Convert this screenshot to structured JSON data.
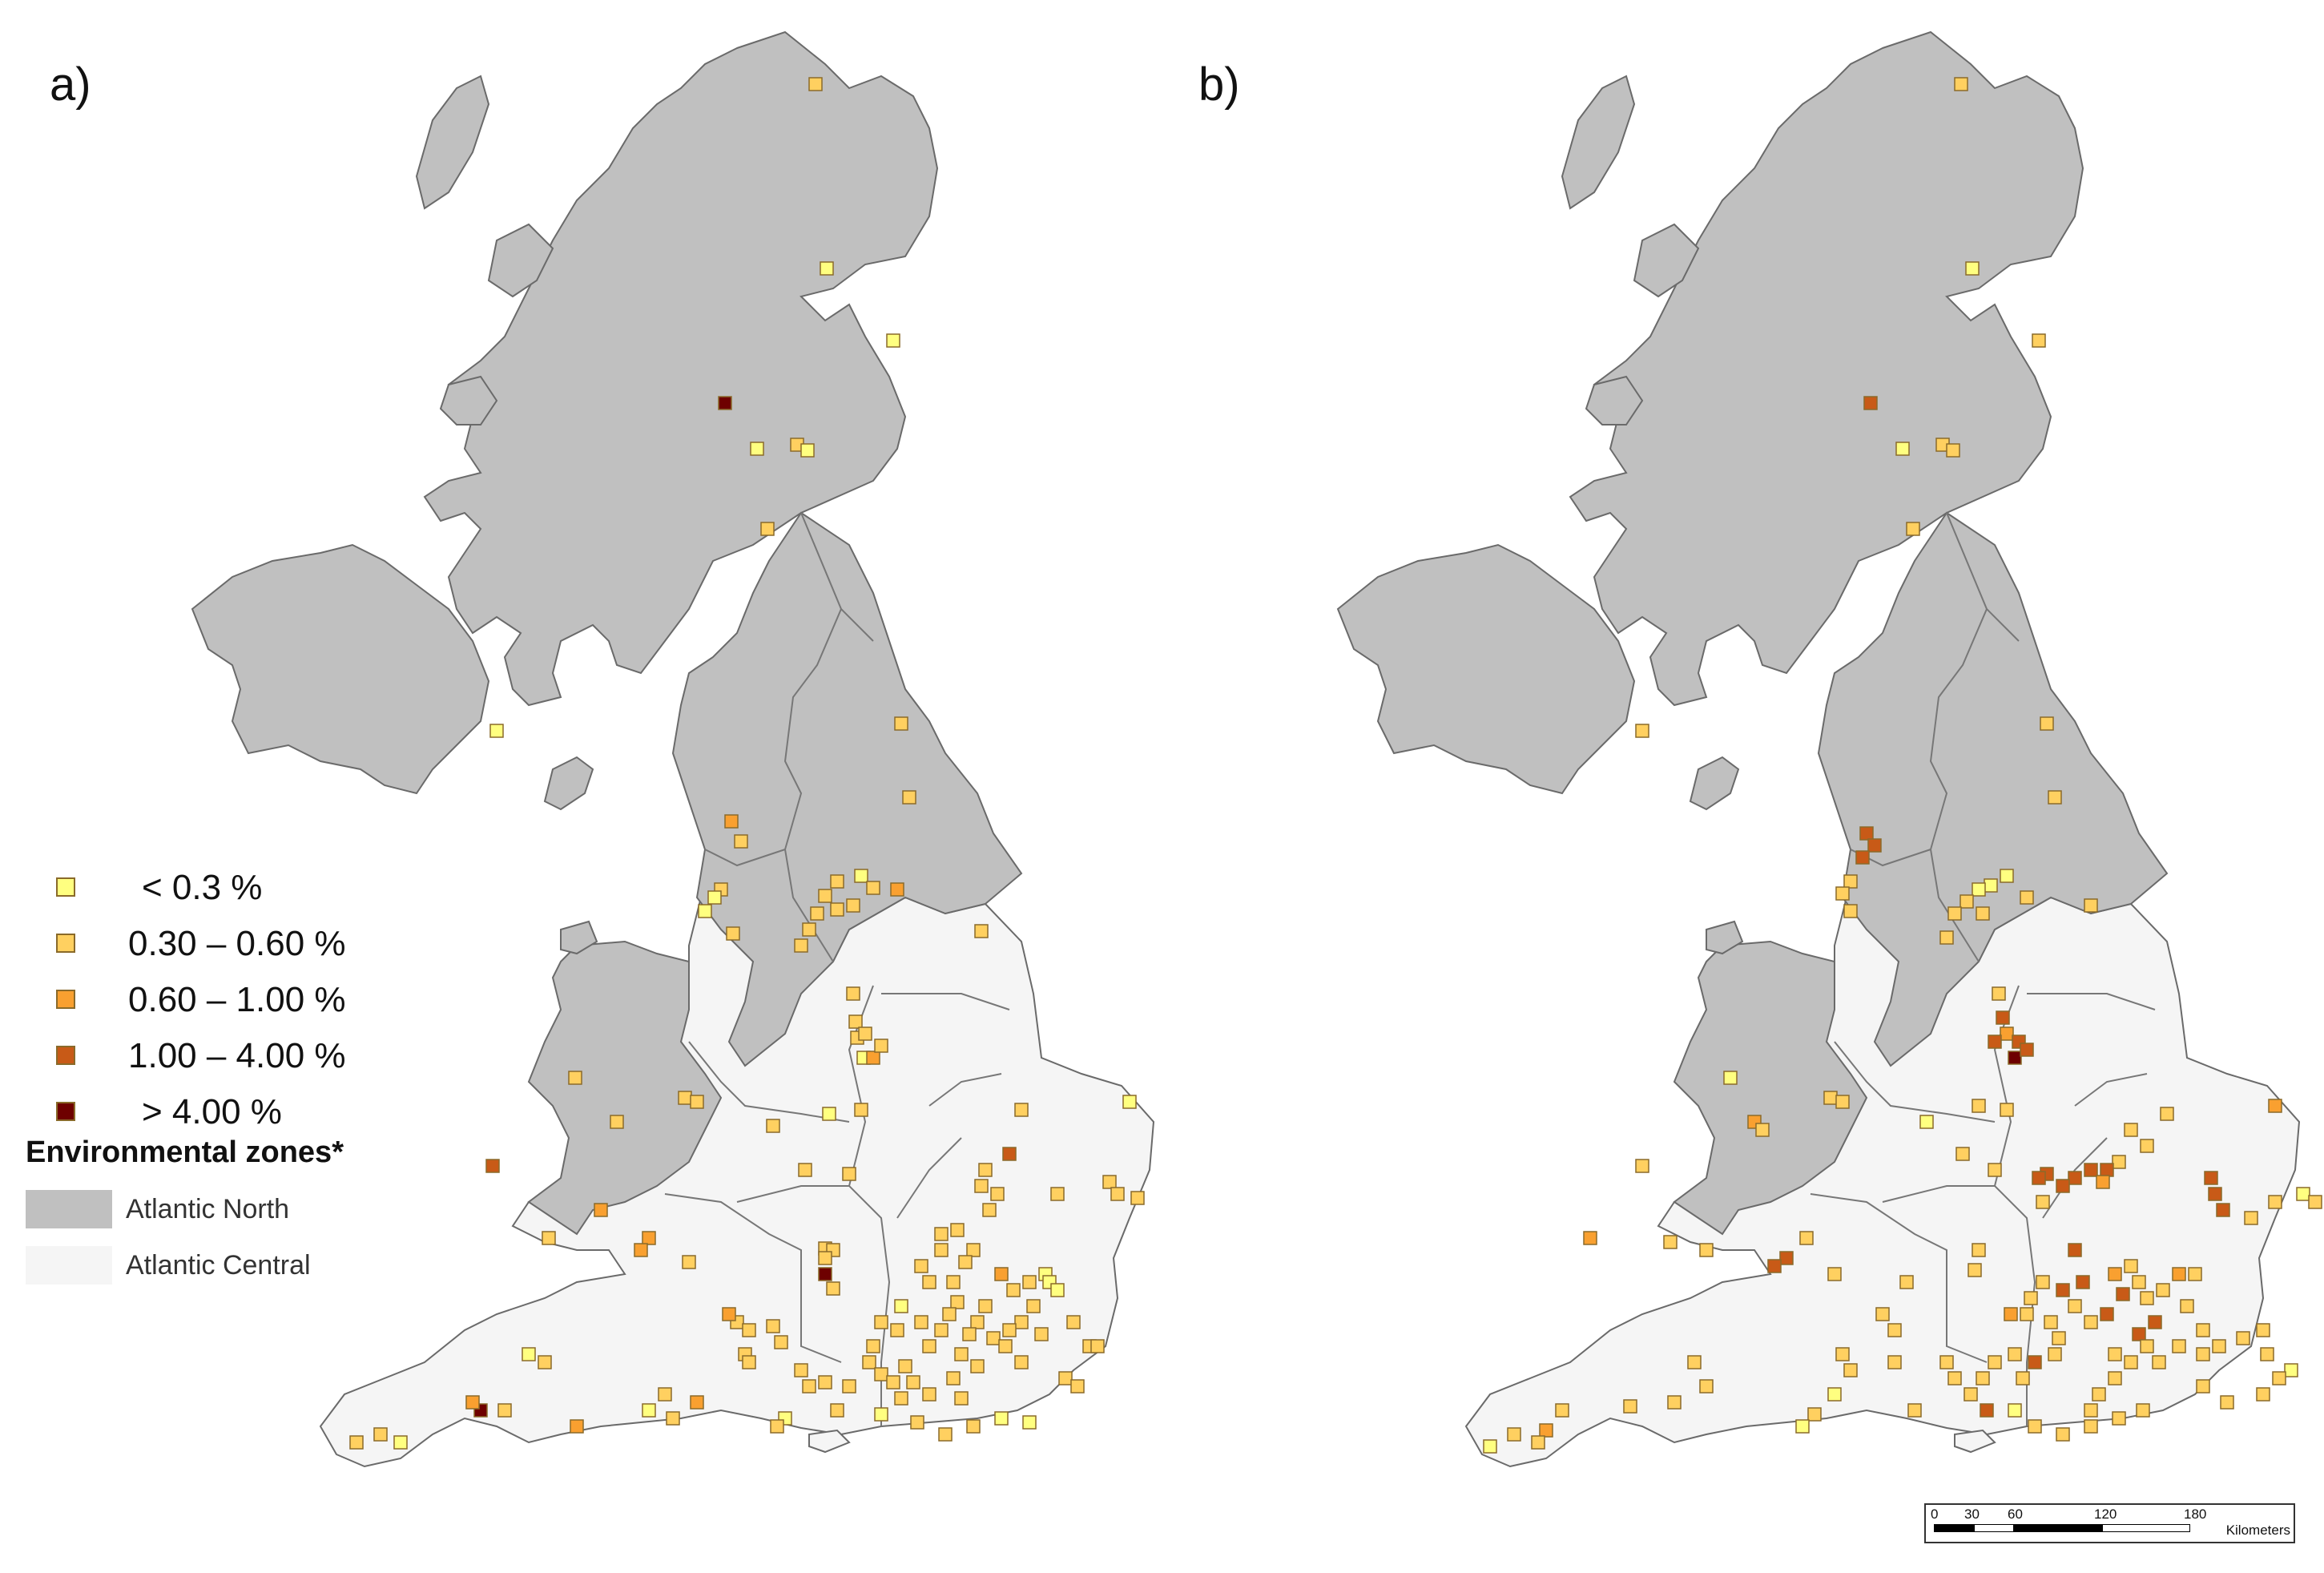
{
  "panels": [
    {
      "label": "a)"
    },
    {
      "label": "b)"
    }
  ],
  "legend": {
    "classes": [
      {
        "label": "< 0.3 %",
        "color": "#ffff80"
      },
      {
        "label": "0.30 – 0.60 %",
        "color": "#ffd060"
      },
      {
        "label": "0.60 – 1.00 %",
        "color": "#f9a030"
      },
      {
        "label": "1.00 – 4.00 %",
        "color": "#c85a17"
      },
      {
        "label": "> 4.00 %",
        "color": "#6e0000"
      }
    ],
    "zones_title": "Environmental zones*",
    "zones": [
      {
        "label": "Atlantic North",
        "color": "#c0c0c0"
      },
      {
        "label": "Atlantic Central",
        "color": "#f5f5f5"
      }
    ]
  },
  "scale_bar": {
    "ticks": [
      "0",
      "30",
      "60",
      "120",
      "180"
    ],
    "unit": "Kilometers"
  },
  "colors": {
    "north_zone": "#c0c0c0",
    "central_zone": "#f5f5f5",
    "coastline": "#6a6a6a",
    "boundary": "#777777"
  }
}
